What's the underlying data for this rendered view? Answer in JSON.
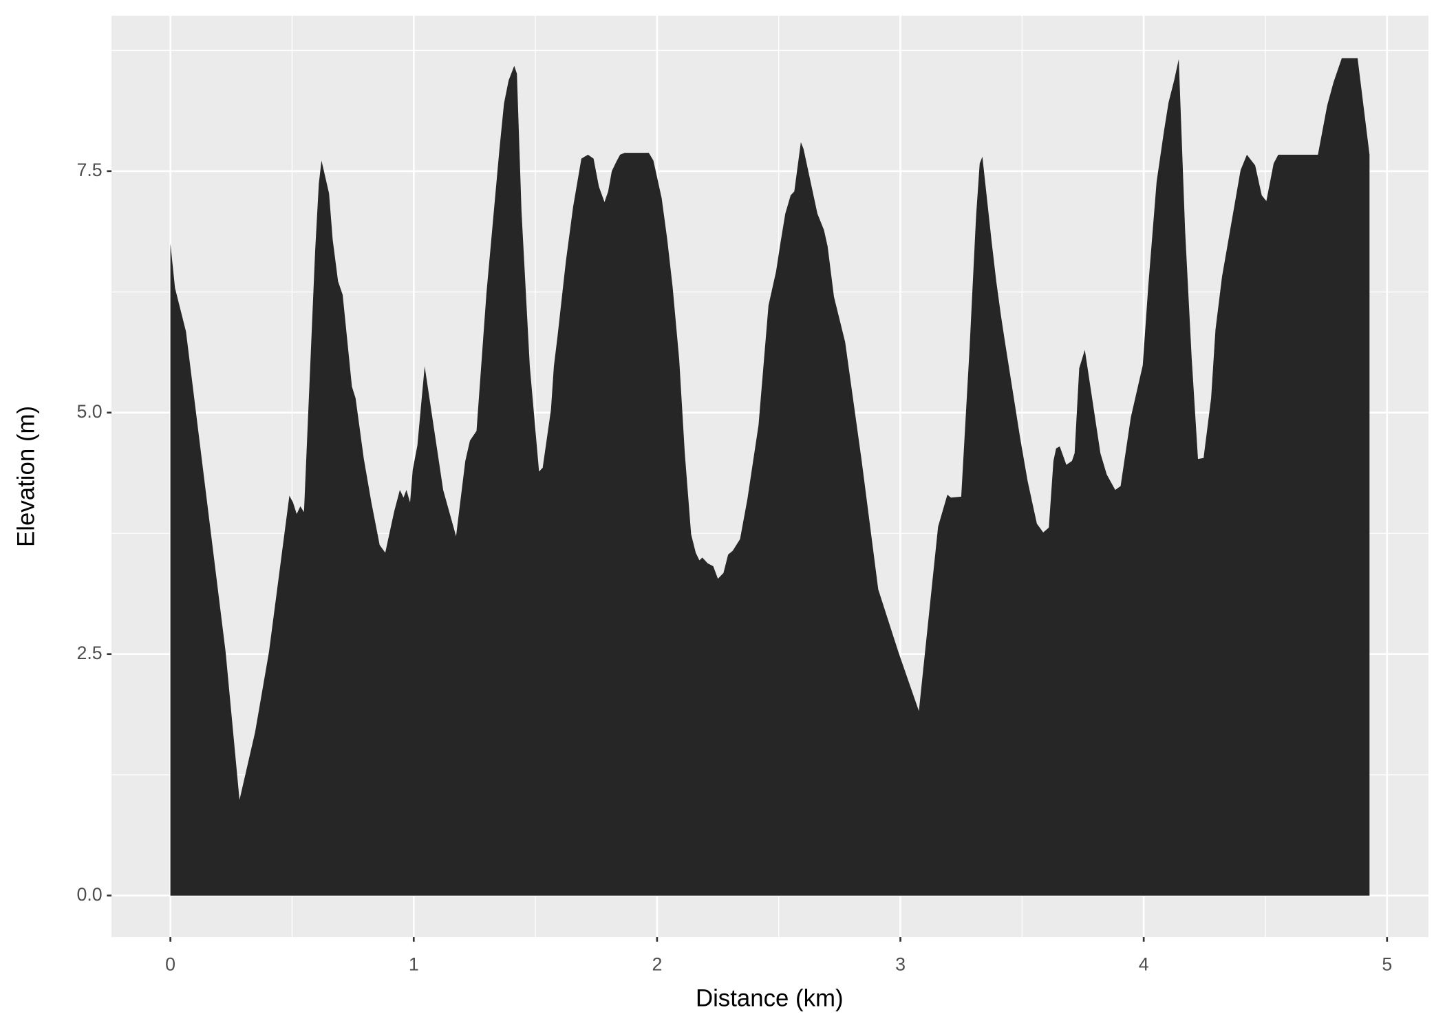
{
  "chart_data": {
    "type": "area",
    "x_label": "Distance (km)",
    "y_label": "Elevation (m)",
    "color": "#262626",
    "grid": true,
    "xlim": [
      -0.242,
      5.17
    ],
    "ylim": [
      -0.43,
      9.11
    ],
    "xticks": [
      0,
      1,
      2,
      3,
      4,
      5
    ],
    "yticks": [
      {
        "value": 0,
        "label": "0.0"
      },
      2.5,
      {
        "value": 5,
        "label": "5.0"
      },
      7.5
    ],
    "x": [
      0,
      0.019,
      0.064,
      0.227,
      0.284,
      0.348,
      0.405,
      0.489,
      0.504,
      0.519,
      0.534,
      0.549,
      0.595,
      0.61,
      0.621,
      0.652,
      0.667,
      0.689,
      0.708,
      0.746,
      0.761,
      0.795,
      0.826,
      0.86,
      0.883,
      0.92,
      0.943,
      0.958,
      0.97,
      0.985,
      0.996,
      1.015,
      1.045,
      1.121,
      1.174,
      1.212,
      1.231,
      1.258,
      1.299,
      1.352,
      1.371,
      1.39,
      1.413,
      1.424,
      1.443,
      1.477,
      1.515,
      1.53,
      1.564,
      1.576,
      1.591,
      1.625,
      1.655,
      1.689,
      1.716,
      1.739,
      1.761,
      1.784,
      1.799,
      1.814,
      1.833,
      1.848,
      1.867,
      1.966,
      1.985,
      2.019,
      2.042,
      2.064,
      2.091,
      2.114,
      2.14,
      2.159,
      2.174,
      2.186,
      2.208,
      2.231,
      2.25,
      2.273,
      2.292,
      2.311,
      2.341,
      2.371,
      2.417,
      2.458,
      2.489,
      2.508,
      2.527,
      2.549,
      2.564,
      2.591,
      2.602,
      2.659,
      2.686,
      2.701,
      2.727,
      2.773,
      2.841,
      2.909,
      2.992,
      3.076,
      3.155,
      3.193,
      3.208,
      3.25,
      3.284,
      3.311,
      3.326,
      3.337,
      3.375,
      3.394,
      3.413,
      3.428,
      3.492,
      3.523,
      3.542,
      3.561,
      3.587,
      3.61,
      3.629,
      3.64,
      3.655,
      3.682,
      3.705,
      3.716,
      3.735,
      3.758,
      3.822,
      3.848,
      3.883,
      3.905,
      3.947,
      3.996,
      4.019,
      4.053,
      4.083,
      4.102,
      4.125,
      4.144,
      4.17,
      4.197,
      4.223,
      4.246,
      4.277,
      4.295,
      4.322,
      4.398,
      4.424,
      4.458,
      4.485,
      4.504,
      4.534,
      4.553,
      4.716,
      4.754,
      4.78,
      4.814,
      4.879,
      4.928
    ],
    "y": [
      6.75,
      6.29,
      5.84,
      2.52,
      0.99,
      1.69,
      2.52,
      4.14,
      4.07,
      3.95,
      4.03,
      3.97,
      6.68,
      7.37,
      7.61,
      7.27,
      6.79,
      6.36,
      6.22,
      5.27,
      5.15,
      4.52,
      4.07,
      3.63,
      3.55,
      3.98,
      4.2,
      4.12,
      4.2,
      4.07,
      4.41,
      4.66,
      5.48,
      4.2,
      3.72,
      4.5,
      4.71,
      4.81,
      6.24,
      7.72,
      8.2,
      8.44,
      8.59,
      8.51,
      7.08,
      5.48,
      4.39,
      4.43,
      5.03,
      5.48,
      5.79,
      6.56,
      7.13,
      7.63,
      7.67,
      7.63,
      7.34,
      7.18,
      7.29,
      7.5,
      7.6,
      7.67,
      7.69,
      7.69,
      7.61,
      7.22,
      6.79,
      6.3,
      5.55,
      4.58,
      3.74,
      3.55,
      3.47,
      3.5,
      3.44,
      3.41,
      3.28,
      3.34,
      3.53,
      3.57,
      3.69,
      4.1,
      4.87,
      6.11,
      6.46,
      6.77,
      7.06,
      7.25,
      7.29,
      7.8,
      7.73,
      7.06,
      6.89,
      6.72,
      6.2,
      5.73,
      4.5,
      3.17,
      2.52,
      1.91,
      3.82,
      4.15,
      4.12,
      4.13,
      5.65,
      7.03,
      7.58,
      7.65,
      6.77,
      6.36,
      6.01,
      5.76,
      4.74,
      4.29,
      4.07,
      3.85,
      3.76,
      3.81,
      4.5,
      4.63,
      4.65,
      4.46,
      4.5,
      4.58,
      5.46,
      5.65,
      4.58,
      4.36,
      4.2,
      4.24,
      4.95,
      5.49,
      6.32,
      7.39,
      7.91,
      8.21,
      8.44,
      8.66,
      6.89,
      5.57,
      4.52,
      4.53,
      5.15,
      5.86,
      6.41,
      7.51,
      7.67,
      7.56,
      7.25,
      7.19,
      7.58,
      7.67,
      7.67,
      8.18,
      8.42,
      8.67,
      8.67,
      7.67
    ]
  }
}
